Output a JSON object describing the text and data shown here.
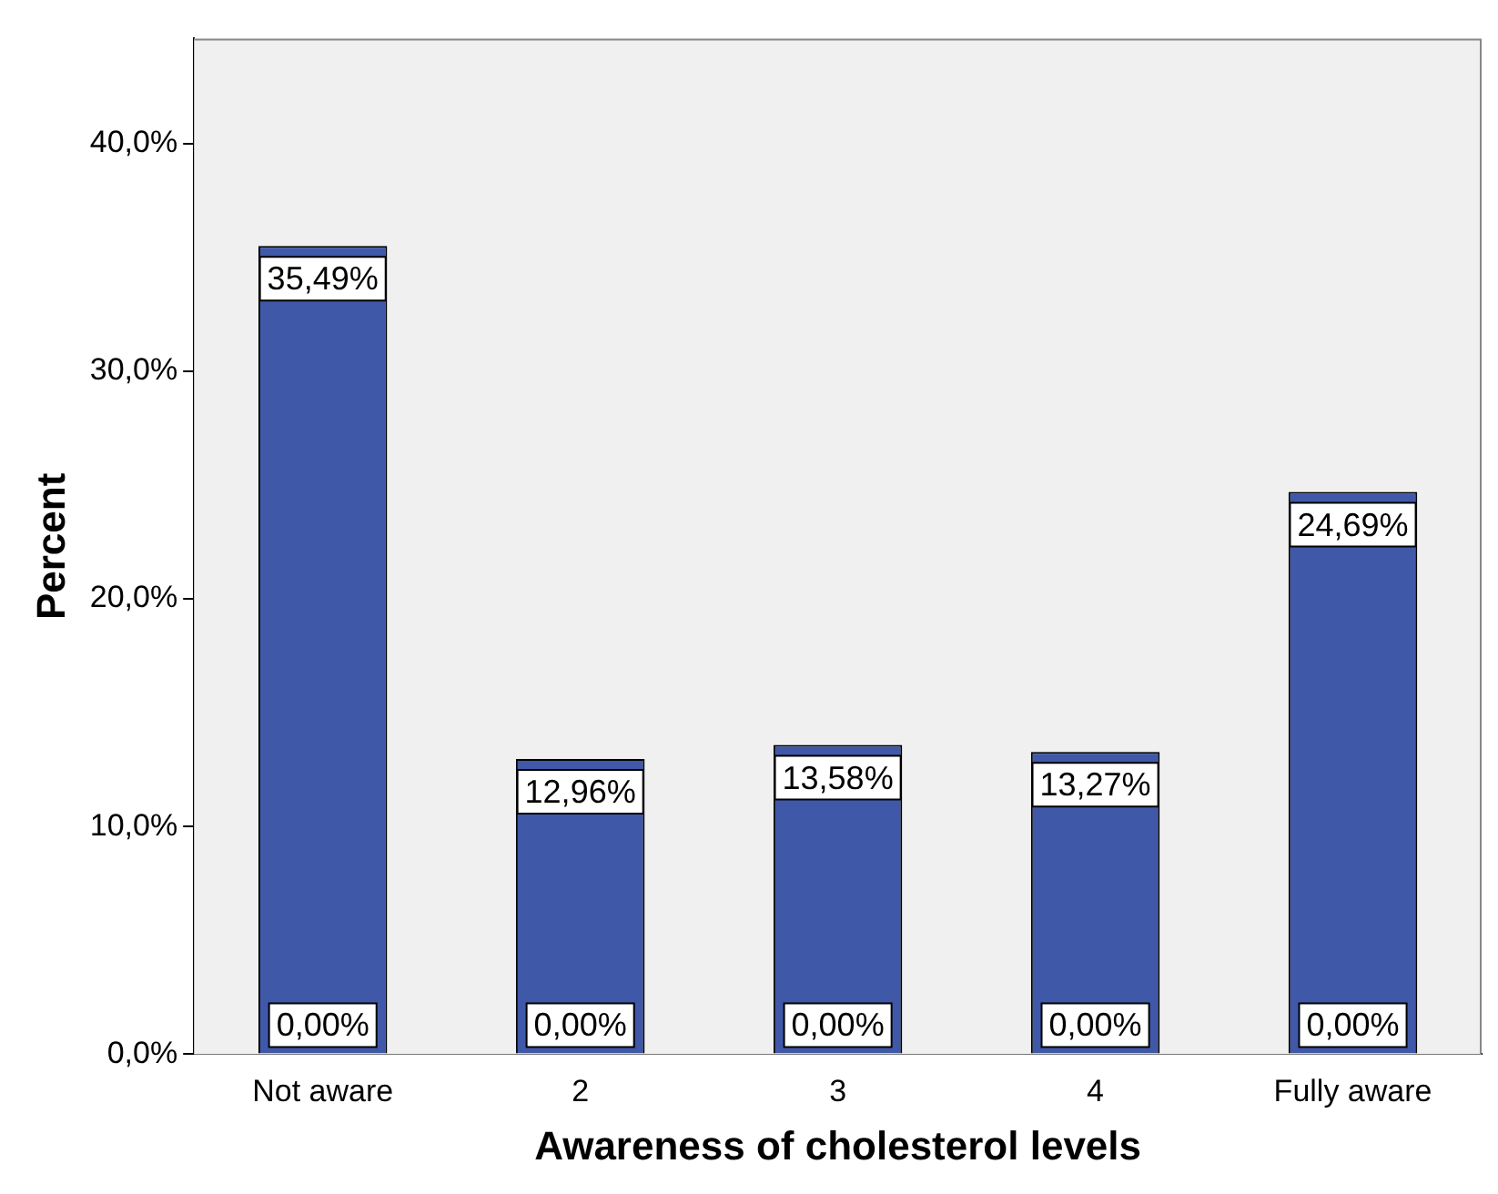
{
  "chart_data": {
    "type": "bar",
    "xlabel": "Awareness of cholesterol levels",
    "ylabel": "Percent",
    "categories": [
      "Not aware",
      "2",
      "3",
      "4",
      "Fully aware"
    ],
    "values": [
      35.49,
      12.96,
      13.58,
      13.27,
      24.69
    ],
    "value_labels": [
      "35,49%",
      "12,96%",
      "13,58%",
      "13,27%",
      "24,69%"
    ],
    "color": "#3f58a8",
    "ylim": [
      0,
      44.6
    ],
    "yticks": [
      {
        "value": 0,
        "label": "0,0%"
      },
      {
        "value": 10,
        "label": "10,0%"
      },
      {
        "value": 20,
        "label": "20,0%"
      },
      {
        "value": 30,
        "label": "30,0%"
      },
      {
        "value": 40,
        "label": "40,0%"
      }
    ],
    "annotations": [
      {
        "text": "0,00%",
        "x": "Not aware",
        "y": 0
      },
      {
        "text": "0,00%",
        "x": "2",
        "y": 0
      },
      {
        "text": "0,00%",
        "x": "3",
        "y": 0
      },
      {
        "text": "0,00%",
        "x": "4",
        "y": 0
      },
      {
        "text": "0,00%",
        "x": "Fully aware",
        "y": 0
      }
    ]
  }
}
